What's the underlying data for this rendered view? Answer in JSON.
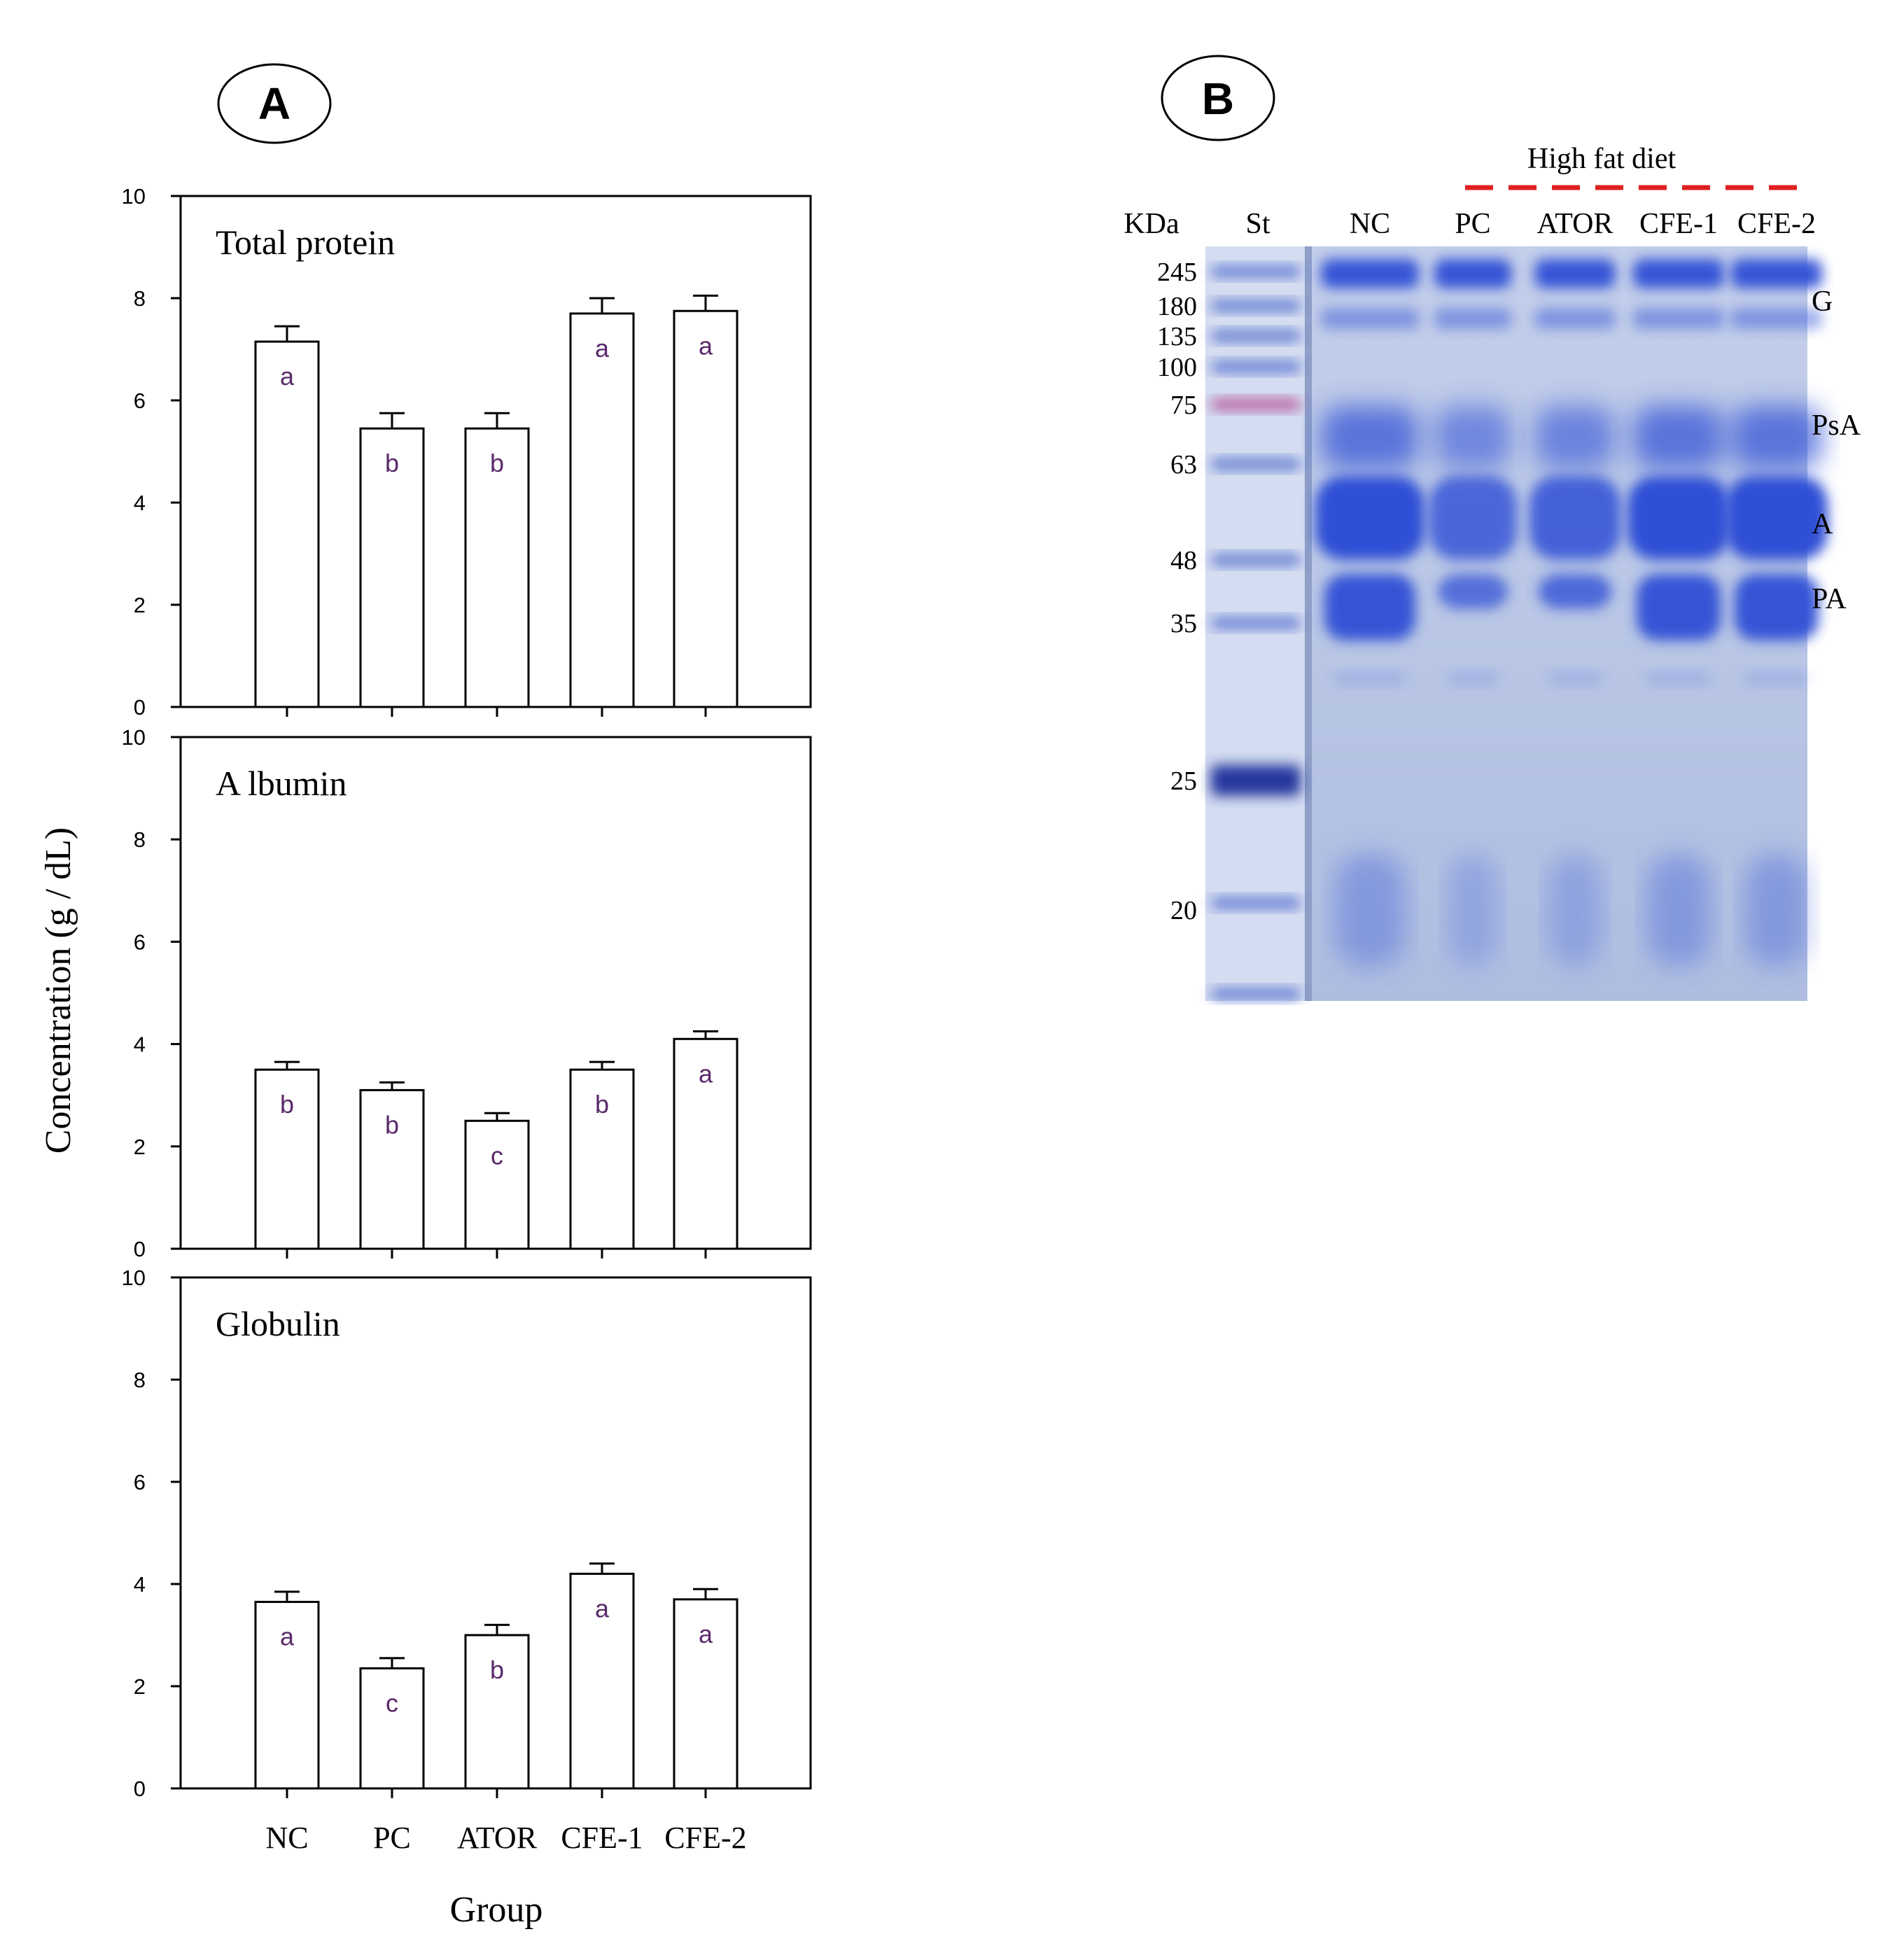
{
  "panel_a": {
    "label": "A",
    "ylabel": "Concentration (g / dL)",
    "xlabel": "Group"
  },
  "panel_b": {
    "label": "B",
    "bracket_label": "High fat diet",
    "kda_header": "KDa",
    "lane_labels": [
      "St",
      "NC",
      "PC",
      "ATOR",
      "CFE-1",
      "CFE-2"
    ],
    "markers": [
      "245",
      "180",
      "135",
      "100",
      "75",
      "63",
      "48",
      "35",
      "25",
      "20"
    ],
    "band_labels": [
      "G",
      "PsA",
      "A",
      "PA"
    ]
  },
  "chart_data": [
    {
      "type": "bar",
      "title": "Total protein",
      "categories": [
        "NC",
        "PC",
        "ATOR",
        "CFE-1",
        "CFE-2"
      ],
      "values": [
        7.15,
        5.45,
        5.45,
        7.7,
        7.75
      ],
      "errors": [
        0.3,
        0.3,
        0.3,
        0.3,
        0.3
      ],
      "letters": [
        "a",
        "b",
        "b",
        "a",
        "a"
      ],
      "ylim": [
        0,
        10
      ],
      "yticks": [
        0,
        2,
        4,
        6,
        8,
        10
      ]
    },
    {
      "type": "bar",
      "title": "A lbumin",
      "categories": [
        "NC",
        "PC",
        "ATOR",
        "CFE-1",
        "CFE-2"
      ],
      "values": [
        3.5,
        3.1,
        2.5,
        3.5,
        4.1
      ],
      "errors": [
        0.15,
        0.15,
        0.15,
        0.15,
        0.15
      ],
      "letters": [
        "b",
        "b",
        "c",
        "b",
        "a"
      ],
      "ylim": [
        0,
        10
      ],
      "yticks": [
        0,
        2,
        4,
        6,
        8,
        10
      ]
    },
    {
      "type": "bar",
      "title": "Globulin",
      "categories": [
        "NC",
        "PC",
        "ATOR",
        "CFE-1",
        "CFE-2"
      ],
      "values": [
        3.65,
        2.35,
        3.0,
        4.2,
        3.7
      ],
      "errors": [
        0.2,
        0.2,
        0.2,
        0.2,
        0.2
      ],
      "letters": [
        "a",
        "c",
        "b",
        "a",
        "a"
      ],
      "ylim": [
        0,
        10
      ],
      "yticks": [
        0,
        2,
        4,
        6,
        8,
        10
      ],
      "show_categories": true
    }
  ],
  "colors": {
    "gel_background": "#b9c6e4",
    "band": "#2f4fd6",
    "marker_pink": "#b23a8c",
    "bracket": "#e02020",
    "letter": "#5a2a6a"
  }
}
